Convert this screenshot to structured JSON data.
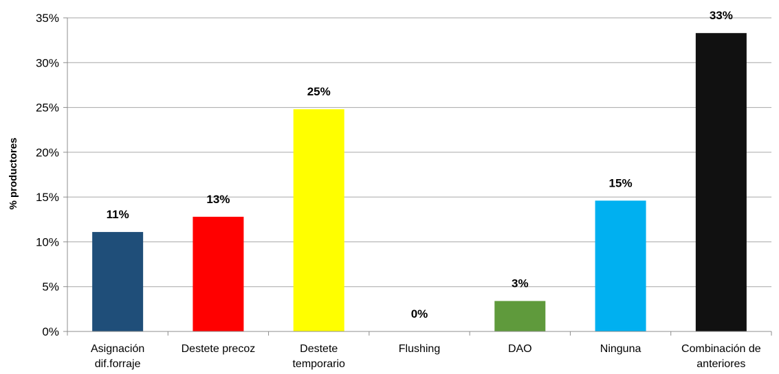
{
  "chart_data": {
    "type": "bar",
    "title": "",
    "xlabel": "",
    "ylabel": "% productores",
    "ylim": [
      0,
      35
    ],
    "y_ticks": [
      "0%",
      "5%",
      "10%",
      "15%",
      "20%",
      "25%",
      "30%",
      "35%"
    ],
    "grid": true,
    "legend": "none",
    "categories": [
      [
        "Asignación",
        "dif.forraje"
      ],
      [
        "Destete precoz"
      ],
      [
        "Destete",
        "temporario"
      ],
      [
        "Flushing"
      ],
      [
        "DAO"
      ],
      [
        "Ninguna"
      ],
      [
        "Combinación de",
        "anteriores"
      ]
    ],
    "values": [
      11.1,
      12.8,
      24.8,
      0,
      3.4,
      14.6,
      33.3
    ],
    "data_labels": [
      "11%",
      "13%",
      "25%",
      "0%",
      "3%",
      "15%",
      "33%"
    ],
    "colors": [
      "#1f4e79",
      "#ff0000",
      "#ffff00",
      "#ffffff",
      "#5f9a3c",
      "#00b0f0",
      "#111111"
    ]
  }
}
